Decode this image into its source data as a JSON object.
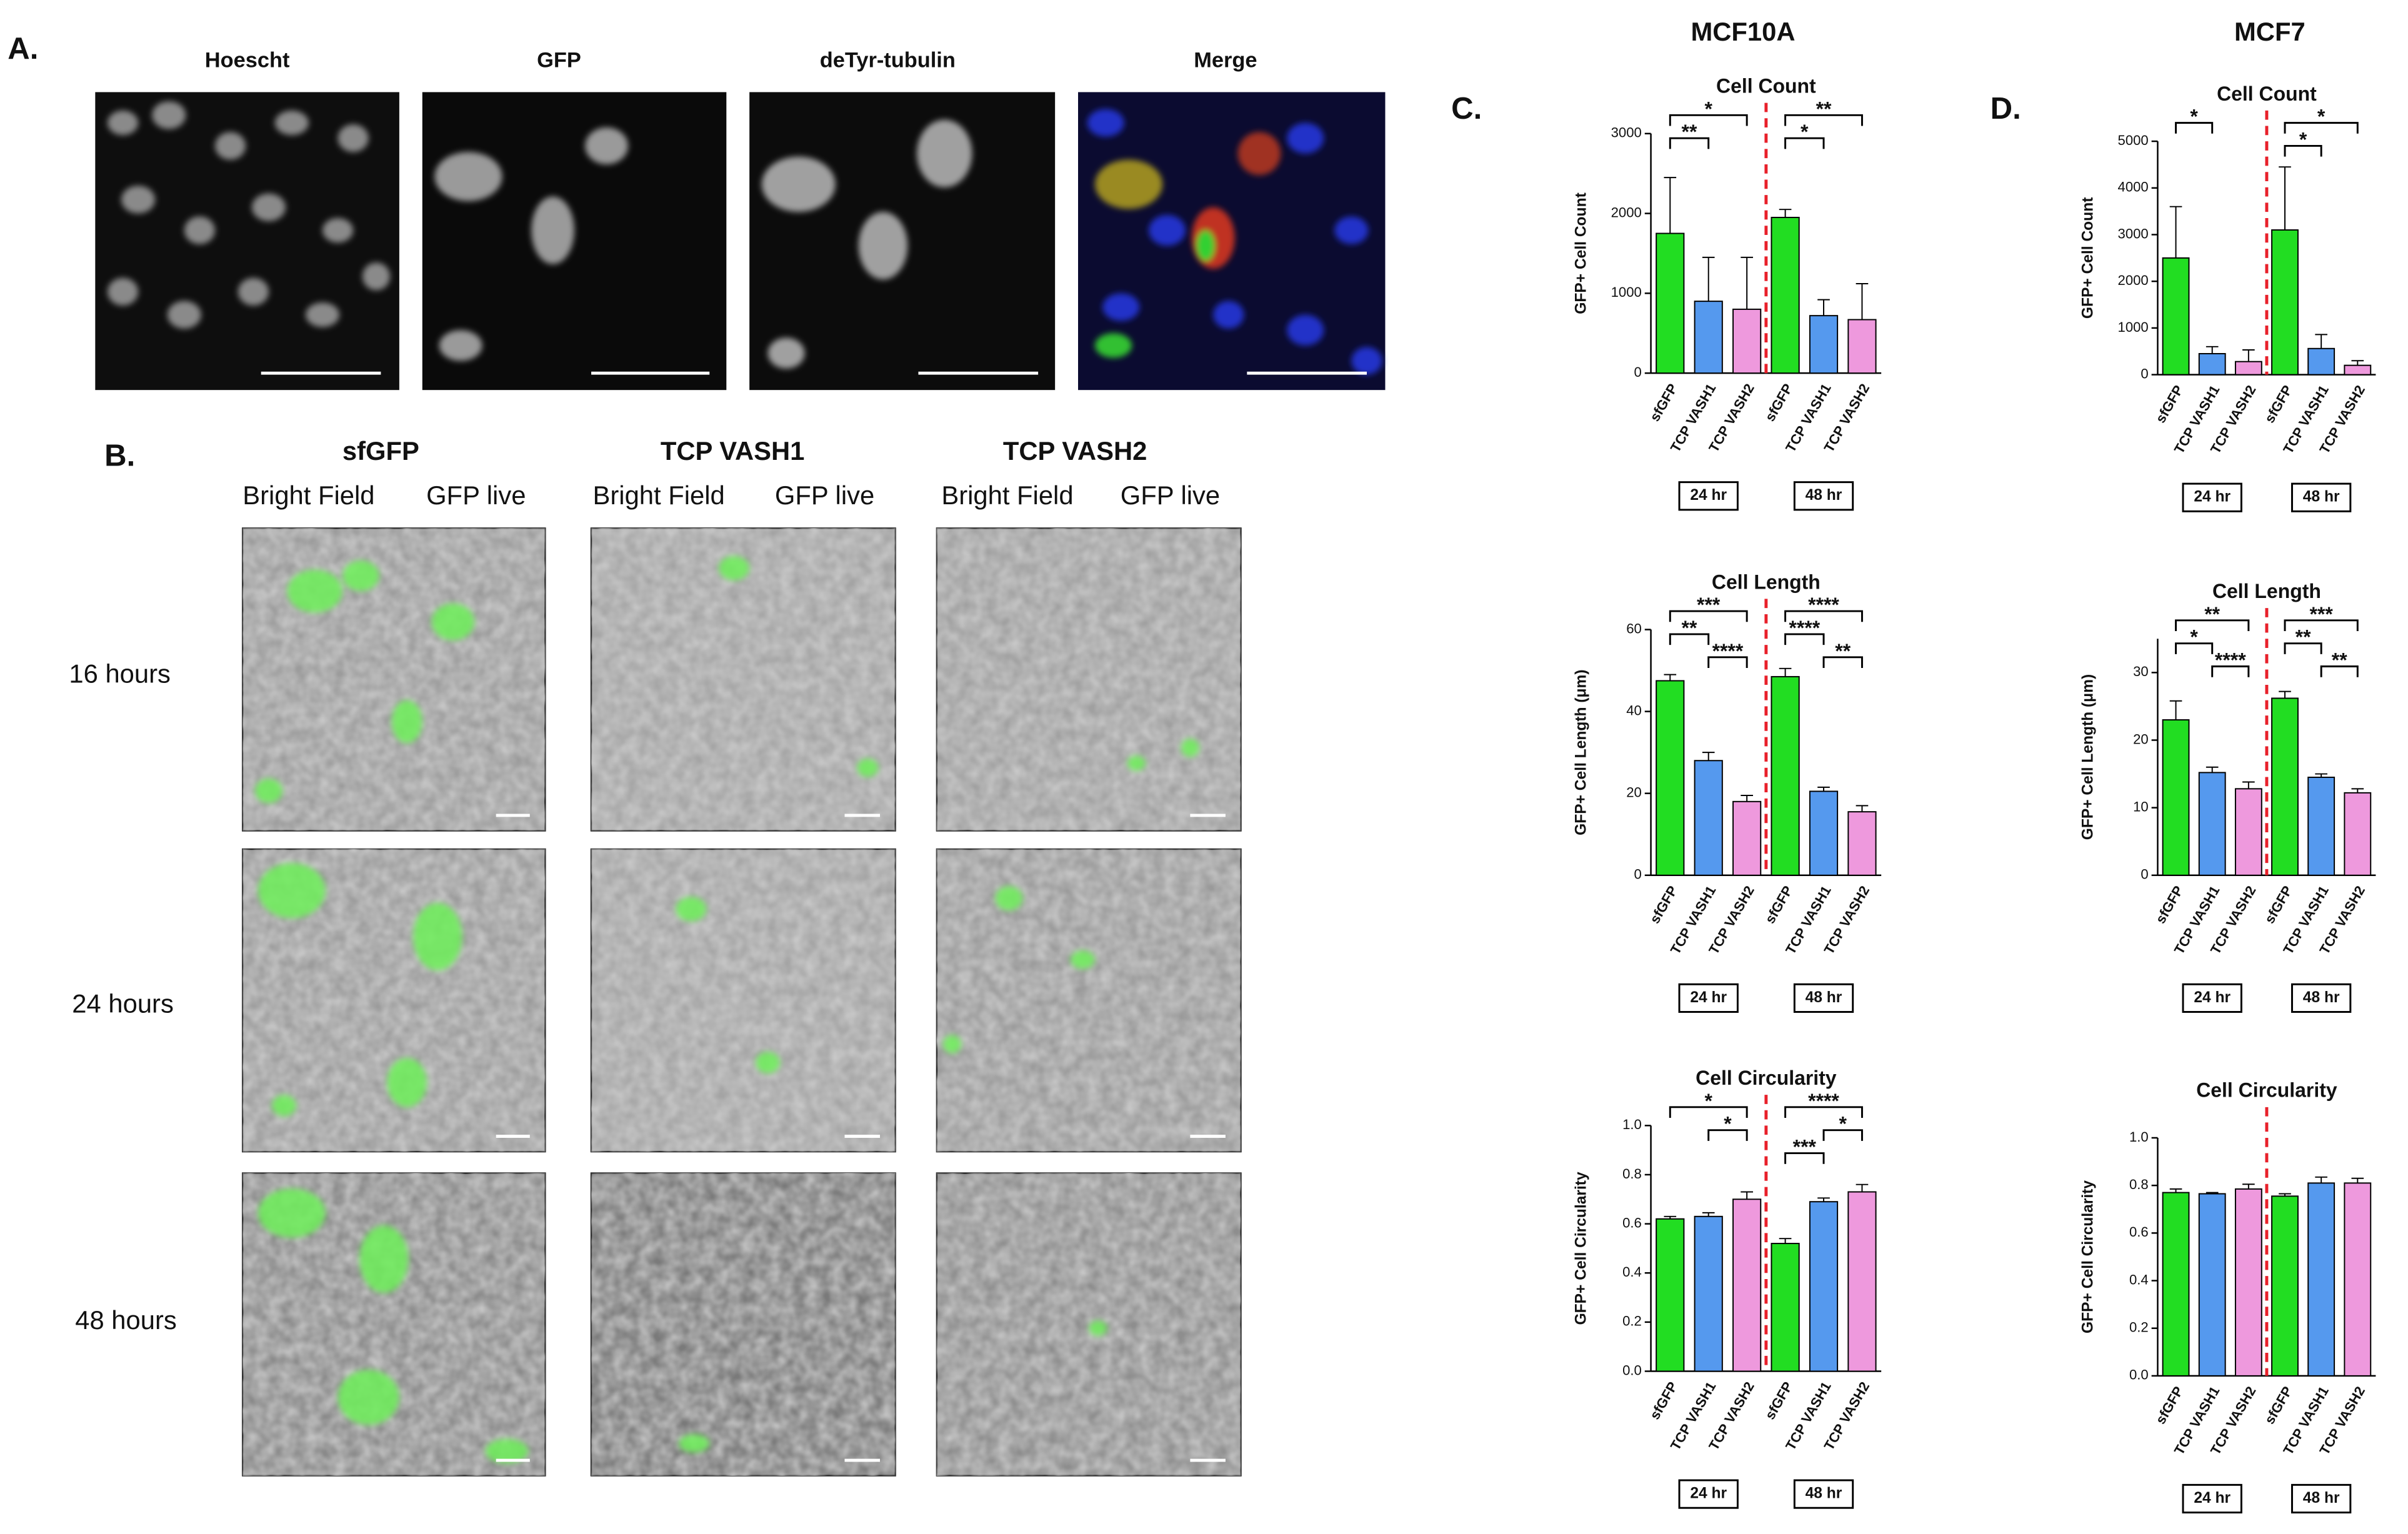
{
  "panel_labels": [
    "A.",
    "B.",
    "C.",
    "D."
  ],
  "panel_a": {
    "titles": [
      "Hoescht",
      "GFP",
      "deTyr-tubulin",
      "Merge"
    ]
  },
  "panel_b": {
    "columns": [
      {
        "title": "sfGFP",
        "subtitles": [
          "Bright Field",
          "GFP live"
        ]
      },
      {
        "title": "TCP VASH1",
        "subtitles": [
          "Bright Field",
          "GFP live"
        ]
      },
      {
        "title": "TCP VASH2",
        "subtitles": [
          "Bright Field",
          "GFP live"
        ]
      }
    ],
    "rows": [
      "16 hours",
      "24 hours",
      "48 hours"
    ]
  },
  "cell_lines": [
    "MCF10A",
    "MCF7"
  ],
  "chart_data": [
    {
      "type": "bar",
      "title": "Cell Count",
      "ylabel": "GFP+ Cell Count",
      "ylim": [
        0,
        3000
      ],
      "yticks": [
        0,
        1000,
        2000,
        3000
      ],
      "colors": [
        "#22dd22",
        "#5599ee",
        "#ee99dd"
      ],
      "divider_color": "#e8202a",
      "groups": [
        {
          "label": "24 hr",
          "categories": [
            "sfGFP",
            "TCP VASH1",
            "TCP VASH2"
          ],
          "values": [
            1750,
            900,
            800
          ],
          "errors": [
            700,
            550,
            650
          ],
          "significance": [
            {
              "text": "*",
              "between": [
                "sfGFP",
                "TCP VASH2"
              ]
            },
            {
              "text": "**",
              "between": [
                "sfGFP",
                "TCP VASH1"
              ]
            }
          ]
        },
        {
          "label": "48 hr",
          "categories": [
            "sfGFP",
            "TCP VASH1",
            "TCP VASH2"
          ],
          "values": [
            1950,
            720,
            670
          ],
          "errors": [
            100,
            200,
            450
          ],
          "significance": [
            {
              "text": "**",
              "between": [
                "sfGFP",
                "TCP VASH2"
              ]
            },
            {
              "text": "*",
              "between": [
                "sfGFP",
                "TCP VASH1"
              ]
            }
          ]
        }
      ]
    },
    {
      "type": "bar",
      "title": "Cell Length",
      "ylabel": "GFP+ Cell Length (μm)",
      "ylim": [
        0,
        60
      ],
      "yticks": [
        0,
        20,
        40,
        60
      ],
      "colors": [
        "#22dd22",
        "#5599ee",
        "#ee99dd"
      ],
      "divider_color": "#e8202a",
      "groups": [
        {
          "label": "24 hr",
          "categories": [
            "sfGFP",
            "TCP VASH1",
            "TCP VASH2"
          ],
          "values": [
            47.5,
            28,
            18
          ],
          "errors": [
            1.5,
            2,
            1.5
          ],
          "significance": [
            {
              "text": "***",
              "between": [
                "sfGFP",
                "TCP VASH2"
              ]
            },
            {
              "text": "**",
              "between": [
                "sfGFP",
                "TCP VASH1"
              ]
            },
            {
              "text": "****",
              "between": [
                "TCP VASH1",
                "TCP VASH2"
              ]
            }
          ]
        },
        {
          "label": "48 hr",
          "categories": [
            "sfGFP",
            "TCP VASH1",
            "TCP VASH2"
          ],
          "values": [
            48.5,
            20.5,
            15.5
          ],
          "errors": [
            2,
            1,
            1.5
          ],
          "significance": [
            {
              "text": "****",
              "between": [
                "sfGFP",
                "TCP VASH2"
              ]
            },
            {
              "text": "****",
              "between": [
                "sfGFP",
                "TCP VASH1"
              ]
            },
            {
              "text": "**",
              "between": [
                "TCP VASH1",
                "TCP VASH2"
              ]
            }
          ]
        }
      ]
    },
    {
      "type": "bar",
      "title": "Cell Circularity",
      "ylabel": "GFP+ Cell Circularity",
      "ylim": [
        0,
        1
      ],
      "yticks": [
        {
          "value": 0,
          "label": "0.0"
        },
        0.2,
        0.4,
        0.6,
        0.8,
        {
          "value": 1,
          "label": "1.0"
        }
      ],
      "colors": [
        "#22dd22",
        "#5599ee",
        "#ee99dd"
      ],
      "divider_color": "#e8202a",
      "groups": [
        {
          "label": "24 hr",
          "categories": [
            "sfGFP",
            "TCP VASH1",
            "TCP VASH2"
          ],
          "values": [
            0.62,
            0.63,
            0.7
          ],
          "errors": [
            0.01,
            0.015,
            0.03
          ],
          "significance": [
            {
              "text": "*",
              "between": [
                "sfGFP",
                "TCP VASH2"
              ]
            },
            {
              "text": "*",
              "between": [
                "TCP VASH1",
                "TCP VASH2"
              ]
            }
          ]
        },
        {
          "label": "48 hr",
          "categories": [
            "sfGFP",
            "TCP VASH1",
            "TCP VASH2"
          ],
          "values": [
            0.52,
            0.69,
            0.73
          ],
          "errors": [
            0.02,
            0.015,
            0.03
          ],
          "significance": [
            {
              "text": "****",
              "between": [
                "sfGFP",
                "TCP VASH2"
              ]
            },
            {
              "text": "*",
              "between": [
                "TCP VASH1",
                "TCP VASH2"
              ]
            },
            {
              "text": "***",
              "between": [
                "sfGFP",
                "TCP VASH1"
              ]
            }
          ]
        }
      ]
    },
    {
      "type": "bar",
      "title": "Cell Count",
      "ylabel": "GFP+ Cell Count",
      "ylim": [
        0,
        5000
      ],
      "yticks": [
        0,
        1000,
        2000,
        3000,
        4000,
        5000
      ],
      "colors": [
        "#22dd22",
        "#5599ee",
        "#ee99dd"
      ],
      "divider_color": "#e8202a",
      "groups": [
        {
          "label": "24 hr",
          "categories": [
            "sfGFP",
            "TCP VASH1",
            "TCP VASH2"
          ],
          "values": [
            2500,
            450,
            280
          ],
          "errors": [
            1100,
            150,
            250
          ],
          "significance": [
            {
              "text": "*",
              "between": [
                "sfGFP",
                "TCP VASH1"
              ]
            }
          ]
        },
        {
          "label": "48 hr",
          "categories": [
            "sfGFP",
            "TCP VASH1",
            "TCP VASH2"
          ],
          "values": [
            3100,
            560,
            200
          ],
          "errors": [
            1350,
            300,
            100
          ],
          "significance": [
            {
              "text": "*",
              "between": [
                "sfGFP",
                "TCP VASH2"
              ]
            },
            {
              "text": "*",
              "between": [
                "sfGFP",
                "TCP VASH1"
              ]
            }
          ]
        }
      ]
    },
    {
      "type": "bar",
      "title": "Cell Length",
      "ylabel": "GFP+ Cell Length (μm)",
      "ylim": [
        0,
        35
      ],
      "yticks": [
        0,
        10,
        20,
        30
      ],
      "colors": [
        "#22dd22",
        "#5599ee",
        "#ee99dd"
      ],
      "divider_color": "#e8202a",
      "groups": [
        {
          "label": "24 hr",
          "categories": [
            "sfGFP",
            "TCP VASH1",
            "TCP VASH2"
          ],
          "values": [
            23,
            15.2,
            12.8
          ],
          "errors": [
            2.8,
            0.8,
            1
          ],
          "significance": [
            {
              "text": "**",
              "between": [
                "sfGFP",
                "TCP VASH2"
              ]
            },
            {
              "text": "*",
              "between": [
                "sfGFP",
                "TCP VASH1"
              ]
            },
            {
              "text": "****",
              "between": [
                "TCP VASH1",
                "TCP VASH2"
              ]
            }
          ]
        },
        {
          "label": "48 hr",
          "categories": [
            "sfGFP",
            "TCP VASH1",
            "TCP VASH2"
          ],
          "values": [
            26.2,
            14.5,
            12.2
          ],
          "errors": [
            1,
            0.5,
            0.6
          ],
          "significance": [
            {
              "text": "***",
              "between": [
                "sfGFP",
                "TCP VASH2"
              ]
            },
            {
              "text": "**",
              "between": [
                "sfGFP",
                "TCP VASH1"
              ]
            },
            {
              "text": "**",
              "between": [
                "TCP VASH1",
                "TCP VASH2"
              ]
            }
          ]
        }
      ]
    },
    {
      "type": "bar",
      "title": "Cell Circularity",
      "ylabel": "GFP+ Cell Circularity",
      "ylim": [
        0,
        1
      ],
      "yticks": [
        {
          "value": 0,
          "label": "0.0"
        },
        0.2,
        0.4,
        0.6,
        0.8,
        {
          "value": 1,
          "label": "1.0"
        }
      ],
      "colors": [
        "#22dd22",
        "#5599ee",
        "#ee99dd"
      ],
      "divider_color": "#e8202a",
      "groups": [
        {
          "label": "24 hr",
          "categories": [
            "sfGFP",
            "TCP VASH1",
            "TCP VASH2"
          ],
          "values": [
            0.77,
            0.765,
            0.785
          ],
          "errors": [
            0.015,
            0.005,
            0.02
          ],
          "significance": []
        },
        {
          "label": "48 hr",
          "categories": [
            "sfGFP",
            "TCP VASH1",
            "TCP VASH2"
          ],
          "values": [
            0.755,
            0.81,
            0.81
          ],
          "errors": [
            0.01,
            0.025,
            0.02
          ],
          "significance": []
        }
      ]
    }
  ]
}
